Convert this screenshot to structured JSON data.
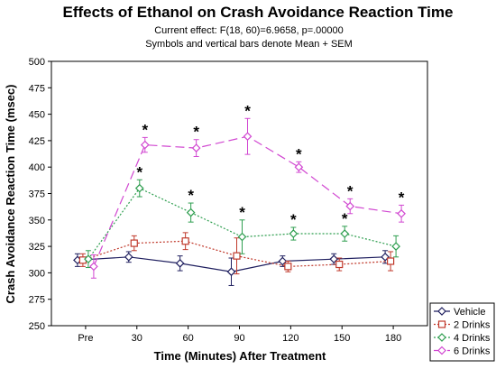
{
  "chart_data": {
    "type": "line",
    "title": "Effects of Ethanol on Crash Avoidance Reaction Time",
    "subtitle_lines": [
      "Current effect: F(18, 60)=6.9658, p=.00000",
      "Symbols and vertical bars denote Mean + SEM"
    ],
    "xlabel": "Time (Minutes) After Treatment",
    "ylabel": "Crash Avoidance Reaction Time (msec)",
    "categories": [
      "Pre",
      "30",
      "60",
      "90",
      "120",
      "150",
      "180"
    ],
    "ylim": [
      250,
      500
    ],
    "yticks": [
      250,
      275,
      300,
      325,
      350,
      375,
      400,
      425,
      450,
      475,
      500
    ],
    "legend_position": "bottom-right",
    "significance_marker": "*",
    "series": [
      {
        "name": "Vehicle",
        "color": "#1f1f5f",
        "marker": "diamond",
        "dash": "solid",
        "x": [
          0,
          30,
          60,
          90,
          120,
          150,
          180
        ],
        "values": [
          312,
          315,
          309,
          301,
          311,
          313,
          315
        ],
        "sem": [
          6,
          5,
          7,
          13,
          5,
          5,
          6
        ],
        "significant": [
          false,
          false,
          false,
          false,
          false,
          false,
          false
        ]
      },
      {
        "name": "2 Drinks",
        "color": "#c0392b",
        "marker": "square",
        "dash": "dot",
        "x": [
          0,
          30,
          60,
          90,
          120,
          150,
          180
        ],
        "values": [
          312,
          328,
          330,
          316,
          306,
          308,
          311
        ],
        "sem": [
          6,
          7,
          8,
          17,
          5,
          6,
          9
        ],
        "significant": [
          false,
          false,
          false,
          false,
          false,
          false,
          false
        ]
      },
      {
        "name": "4 Drinks",
        "color": "#2e9e4f",
        "marker": "diamond",
        "dash": "dot",
        "x": [
          0,
          30,
          60,
          90,
          120,
          150,
          180
        ],
        "values": [
          313,
          380,
          357,
          334,
          337,
          337,
          325
        ],
        "sem": [
          8,
          8,
          9,
          16,
          6,
          7,
          10
        ],
        "significant": [
          false,
          true,
          true,
          true,
          true,
          true,
          false
        ]
      },
      {
        "name": "6 Drinks",
        "color": "#d147d1",
        "marker": "diamond",
        "dash": "dash",
        "x": [
          0,
          30,
          60,
          90,
          120,
          150,
          180
        ],
        "values": [
          306,
          421,
          418,
          429,
          400,
          363,
          356
        ],
        "sem": [
          11,
          7,
          8,
          17,
          5,
          7,
          8
        ],
        "significant": [
          false,
          true,
          true,
          true,
          true,
          true,
          true
        ]
      }
    ]
  }
}
